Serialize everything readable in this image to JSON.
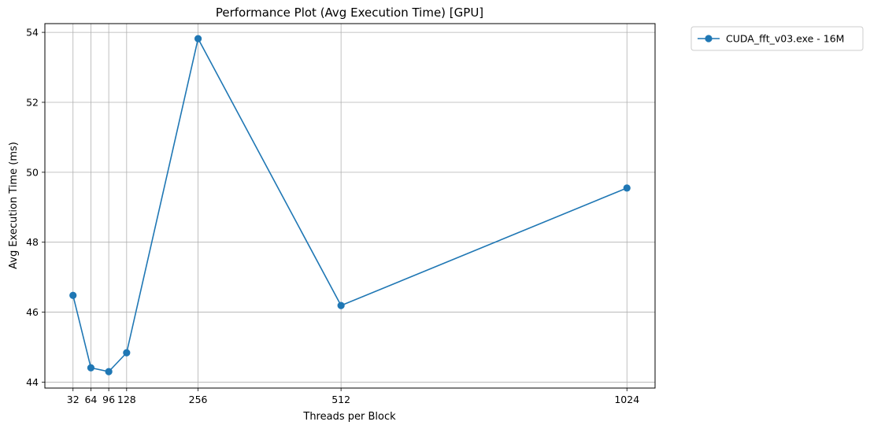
{
  "chart_data": {
    "type": "line",
    "title": "Performance Plot (Avg Execution Time) [GPU]",
    "xlabel": "Threads per Block",
    "ylabel": "Avg Execution Time (ms)",
    "x": [
      32,
      64,
      96,
      128,
      256,
      512,
      1024
    ],
    "x_tick_labels": [
      "32",
      "64",
      "96",
      "128",
      "256",
      "512",
      "1024"
    ],
    "xlim": [
      -18.4,
      1074.4
    ],
    "y_ticks": [
      44,
      46,
      48,
      50,
      52,
      54
    ],
    "y_tick_labels": [
      "44",
      "46",
      "48",
      "50",
      "52",
      "54"
    ],
    "ylim": [
      43.83,
      54.25
    ],
    "series": [
      {
        "name": "CUDA_fft_v03.exe - 16M",
        "color": "#1f77b4",
        "marker": "circle",
        "values": [
          46.48,
          44.41,
          44.3,
          44.84,
          53.82,
          46.19,
          49.55
        ]
      }
    ],
    "grid": true,
    "legend_position": "outside-top-right"
  }
}
